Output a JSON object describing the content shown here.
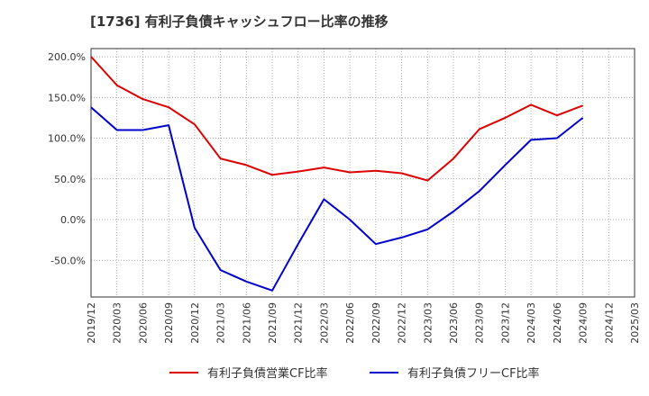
{
  "chart_data": {
    "type": "line",
    "title": "[1736]  有利子負債キャッシュフロー比率の推移",
    "xlabel": "",
    "ylabel": "",
    "x_tick_labels": [
      "2019/12",
      "2020/03",
      "2020/06",
      "2020/09",
      "2020/12",
      "2021/03",
      "2021/06",
      "2021/09",
      "2021/12",
      "2022/03",
      "2022/06",
      "2022/09",
      "2022/12",
      "2023/03",
      "2023/06",
      "2023/09",
      "2023/12",
      "2024/03",
      "2024/06",
      "2024/09",
      "2024/12",
      "2025/03"
    ],
    "y_ticks": [
      200,
      150,
      100,
      50,
      0,
      -50
    ],
    "y_tick_labels": [
      "200.0%",
      "150.0%",
      "100.0%",
      "50.0%",
      "0.0%",
      "-50.0%"
    ],
    "ylim": [
      -95,
      210
    ],
    "grid": true,
    "legend_position": "bottom",
    "series": [
      {
        "name": "有利子負債営業CF比率",
        "color": "#dd0000",
        "values": [
          200,
          165,
          148,
          138,
          117,
          75,
          67,
          55,
          59,
          64,
          58,
          60,
          57,
          48,
          75,
          111,
          125,
          141,
          128,
          140,
          null,
          null
        ]
      },
      {
        "name": "有利子負債フリーCF比率",
        "color": "#0000cc",
        "values": [
          138,
          110,
          110,
          116,
          -10,
          -62,
          -76,
          -87,
          -30,
          25,
          0,
          -30,
          -22,
          -12,
          10,
          35,
          67,
          98,
          100,
          125,
          null,
          null
        ]
      }
    ]
  }
}
